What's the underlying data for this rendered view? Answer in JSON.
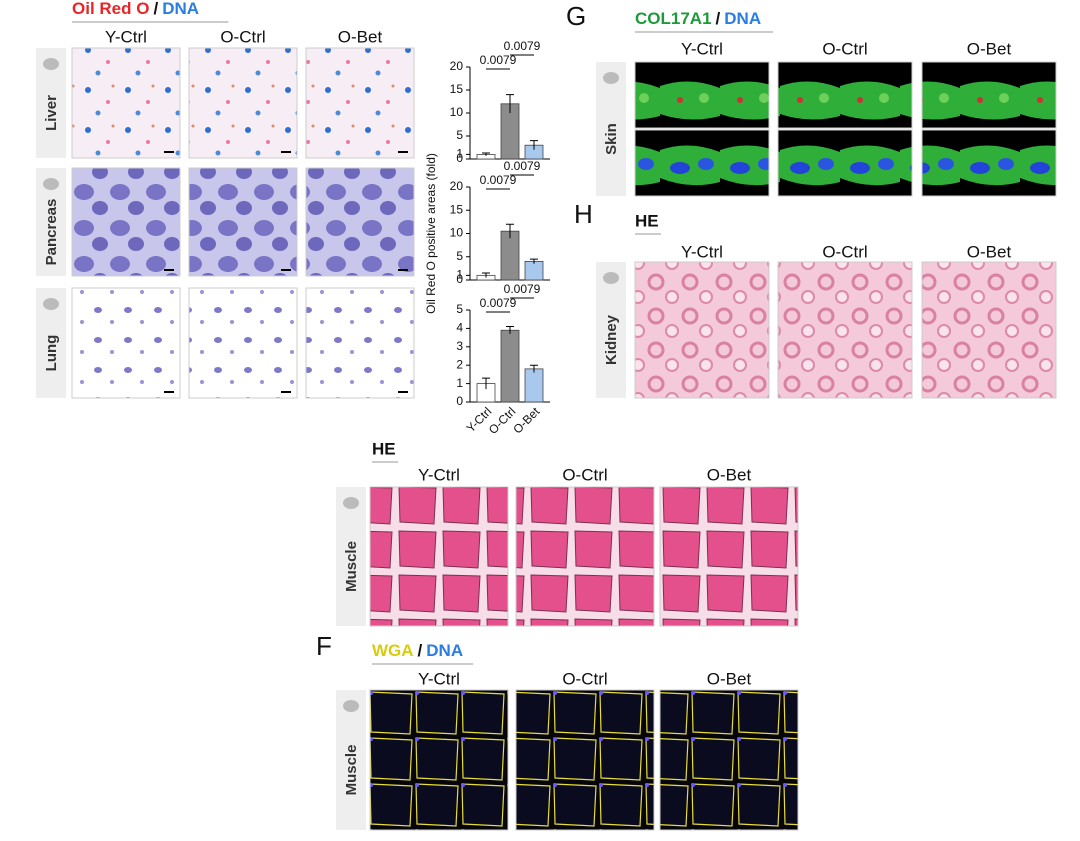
{
  "panel_a": {
    "title": [
      "Oil Red O",
      "/",
      "DNA"
    ],
    "columns": [
      "Y-Ctrl",
      "O-Ctrl",
      "O-Bet"
    ],
    "rows": [
      "Liver",
      "Pancreas",
      "Lung"
    ]
  },
  "chart_data": [
    {
      "type": "bar",
      "values": [
        1,
        12,
        3
      ],
      "errors": [
        0.3,
        2,
        1
      ],
      "colors": [
        "#ffffff",
        "#8c8c8c",
        "#a9c8ee"
      ],
      "ylim": [
        0,
        20
      ],
      "yticks": [
        0,
        1,
        5,
        10,
        15,
        20
      ],
      "annotations": [
        "0.0079",
        "0.0079"
      ]
    },
    {
      "type": "bar",
      "y_label": "Oil Red O positive areas (fold)",
      "values": [
        1,
        10.5,
        4
      ],
      "errors": [
        0.5,
        1.5,
        0.5
      ],
      "colors": [
        "#ffffff",
        "#8c8c8c",
        "#a9c8ee"
      ],
      "ylim": [
        0,
        20
      ],
      "yticks": [
        0,
        1,
        5,
        10,
        15,
        20
      ],
      "annotations": [
        "0.0079",
        "0.0079"
      ]
    },
    {
      "type": "bar",
      "categories": [
        "Y-Ctrl",
        "O-Ctrl",
        "O-Bet"
      ],
      "values": [
        1,
        3.9,
        1.8
      ],
      "errors": [
        0.3,
        0.2,
        0.2
      ],
      "colors": [
        "#ffffff",
        "#8c8c8c",
        "#a9c8ee"
      ],
      "ylim": [
        0,
        5
      ],
      "yticks": [
        0,
        1,
        2,
        3,
        4,
        5
      ],
      "annotations": [
        "0.0079",
        "0.0079"
      ]
    }
  ],
  "panel_g": {
    "letter": "G",
    "title": [
      "COL17A1",
      "/",
      "DNA"
    ],
    "columns": [
      "Y-Ctrl",
      "O-Ctrl",
      "O-Bet"
    ],
    "row": "Skin"
  },
  "panel_h": {
    "letter": "H",
    "title": "HE",
    "columns": [
      "Y-Ctrl",
      "O-Ctrl",
      "O-Bet"
    ],
    "row": "Kidney"
  },
  "panel_e": {
    "title": "HE",
    "columns": [
      "Y-Ctrl",
      "O-Ctrl",
      "O-Bet"
    ],
    "row": "Muscle"
  },
  "panel_f": {
    "letter": "F",
    "title": [
      "WGA",
      "/",
      "DNA"
    ],
    "columns": [
      "Y-Ctrl",
      "O-Ctrl",
      "O-Bet"
    ],
    "row": "Muscle"
  }
}
